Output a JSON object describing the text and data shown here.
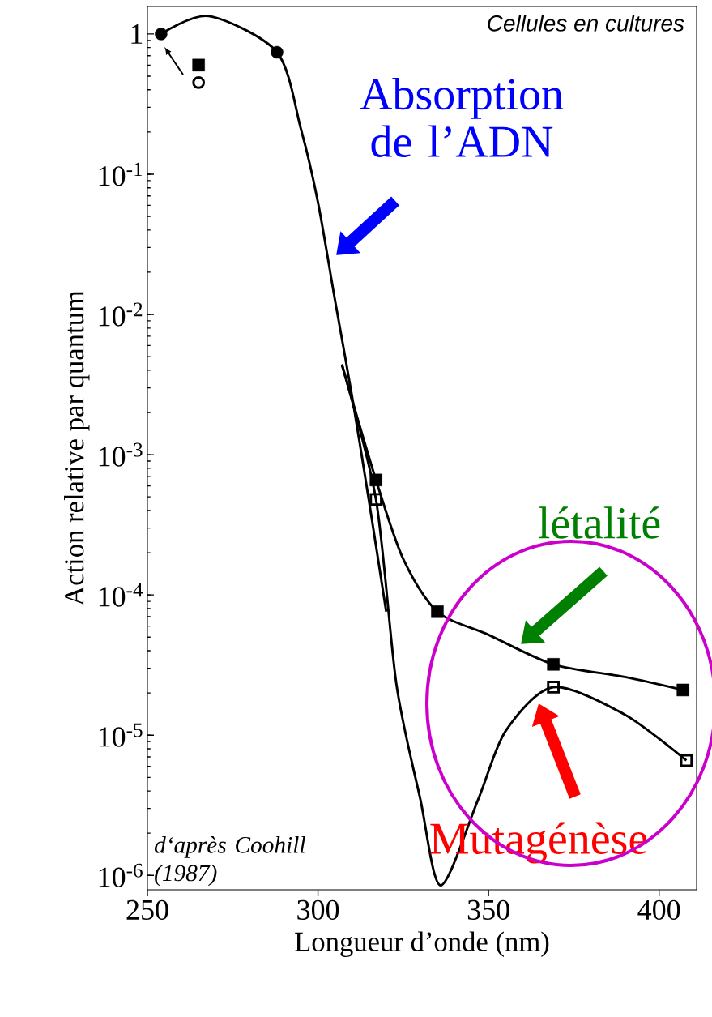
{
  "chart_data": {
    "type": "line",
    "xlabel": "Longueur d’onde (nm)",
    "ylabel": "Action relative par quantum",
    "log": "y",
    "xlim": [
      250,
      411
    ],
    "ylim": [
      7.9e-07,
      1.57
    ],
    "xticks": [
      250,
      300,
      350,
      400
    ],
    "yticks": [
      {
        "value": 1e-06,
        "label": "10$^{-6}$"
      },
      {
        "value": 1e-05,
        "label": "10$^{-5}$"
      },
      {
        "value": 0.0001,
        "label": "10$^{-4}$"
      },
      {
        "value": 0.001,
        "label": "10$^{-3}$"
      },
      {
        "value": 0.01,
        "label": "10$^{-2}$"
      },
      {
        "value": 0.1,
        "label": "10$^{-1}$"
      },
      1
    ],
    "grid": false,
    "legend": false,
    "line_style": "solid",
    "series": [
      {
        "marker": "none",
        "color": "#000000",
        "x": [
          254,
          268,
          288,
          295,
          300,
          305,
          310,
          315,
          320
        ],
        "values": [
          1.0,
          1.34,
          0.74,
          0.21,
          0.063,
          0.0126,
          0.0026,
          0.00046,
          7.6e-05
        ]
      },
      {
        "type": "scatter",
        "marker": "circle",
        "color": "#000000",
        "x": [
          254,
          288
        ],
        "values": [
          1.0,
          0.74
        ]
      },
      {
        "marker": "none",
        "color": "#000000",
        "x": [
          307,
          317,
          325,
          335,
          350,
          369,
          390,
          407
        ],
        "values": [
          0.0044,
          0.00066,
          0.00018,
          7.6e-05,
          5.2e-05,
          3.2e-05,
          2.6e-05,
          2.1e-05
        ]
      },
      {
        "type": "scatter",
        "marker": "square",
        "color": "#000000",
        "x": [
          265,
          317,
          335,
          369,
          407
        ],
        "values": [
          0.6,
          0.00066,
          7.6e-05,
          3.2e-05,
          2.1e-05
        ]
      },
      {
        "marker": "none",
        "color": "#000000",
        "x": [
          307,
          317,
          323,
          330,
          336,
          347,
          355,
          369,
          390,
          408
        ],
        "values": [
          0.0044,
          0.00048,
          2.3e-05,
          3.5e-06,
          8.5e-07,
          3.5e-06,
          1.07e-05,
          2.2e-05,
          1.4e-05,
          6.6e-06
        ]
      },
      {
        "type": "scatter",
        "marker": "square",
        "color": "#000000",
        "x": [
          317,
          369,
          408
        ],
        "values": [
          0.00048,
          2.2e-05,
          6.6e-06
        ]
      },
      {
        "type": "scatter",
        "marker": "circle",
        "color": "#000000",
        "x": [
          265
        ],
        "values": [
          0.45
        ]
      }
    ],
    "annotations": [
      "Absorption de l’ADN",
      "létalité",
      "Mutagénèse",
      "Cellules en cultures",
      "d‘après Coohill (1987)"
    ]
  }
}
